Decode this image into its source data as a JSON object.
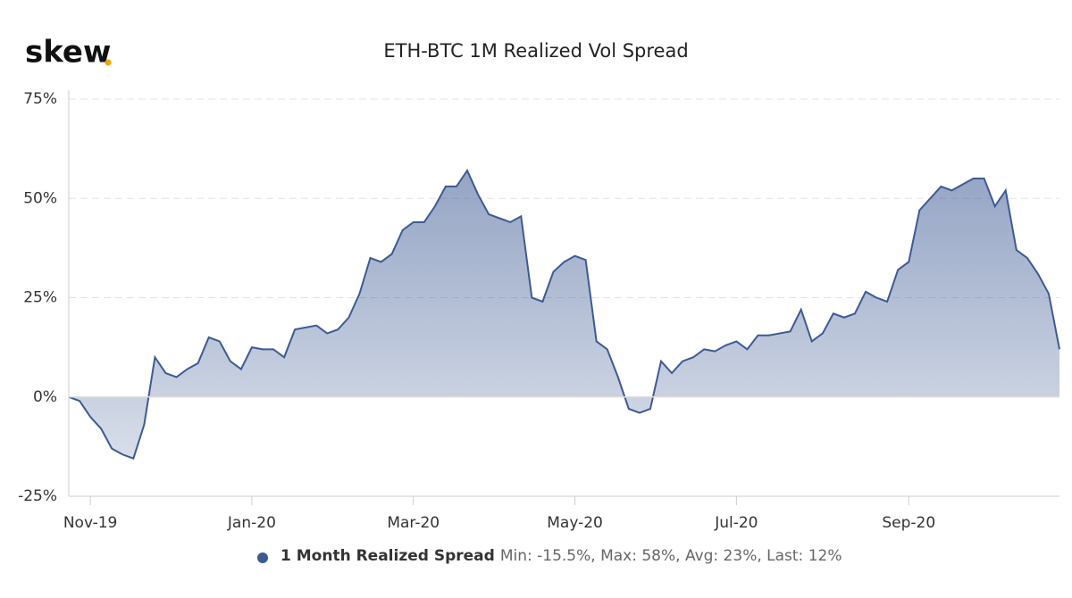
{
  "chart_data": {
    "type": "area",
    "logo": "skew",
    "title": "ETH-BTC 1M Realized Vol Spread",
    "categories": [
      null,
      null,
      "Nov-19",
      null,
      null,
      null,
      null,
      null,
      null,
      null,
      null,
      null,
      null,
      null,
      null,
      null,
      null,
      "Jan-20",
      null,
      null,
      null,
      null,
      null,
      null,
      null,
      null,
      null,
      null,
      null,
      null,
      null,
      null,
      "Mar-20",
      null,
      null,
      null,
      null,
      null,
      null,
      null,
      null,
      null,
      null,
      null,
      null,
      null,
      null,
      "May-20",
      null,
      null,
      null,
      null,
      null,
      null,
      null,
      null,
      null,
      null,
      null,
      null,
      null,
      null,
      "Jul-20",
      null,
      null,
      null,
      null,
      null,
      null,
      null,
      null,
      null,
      null,
      null,
      null,
      null,
      null,
      null,
      "Sep-20",
      null,
      null,
      null,
      null,
      null,
      null,
      null,
      null,
      null,
      null,
      null,
      null,
      null,
      null
    ],
    "series": [
      {
        "name": "1 Month Realized Spread",
        "color": "#3d5a94",
        "values": [
          0,
          -1,
          -5,
          -8,
          -13,
          -14.5,
          -15.5,
          -7,
          10,
          6,
          5,
          7,
          8.5,
          15,
          14,
          9,
          7,
          12.5,
          12,
          12,
          10,
          17,
          17.5,
          18,
          16,
          17,
          20,
          26,
          35,
          34,
          36,
          42,
          44,
          44,
          48,
          53,
          53,
          57,
          51,
          46,
          45,
          44,
          45.5,
          25,
          24,
          31.5,
          34,
          35.5,
          34.5,
          14,
          12,
          5,
          -3,
          -4,
          -3,
          9,
          6,
          9,
          10,
          12,
          11.5,
          13,
          14,
          12,
          15.5,
          15.5,
          16,
          16.5,
          22,
          14,
          16,
          21,
          20,
          21,
          26.5,
          25,
          24,
          32,
          34,
          47,
          50,
          53,
          52,
          53.5,
          55,
          55,
          48,
          52,
          37,
          35,
          31,
          26,
          12
        ]
      }
    ],
    "legend_stats": "Min: -15.5%, Max: 58%, Avg: 23%, Last: 12%",
    "ylim": [
      -25,
      75
    ],
    "yticks": [
      {
        "value": -25,
        "label": "-25%"
      },
      {
        "value": 0,
        "label": "0%"
      },
      {
        "value": 25,
        "label": "25%"
      },
      {
        "value": 50,
        "label": "50%"
      },
      {
        "value": 75,
        "label": "75%"
      }
    ],
    "grid": true
  }
}
